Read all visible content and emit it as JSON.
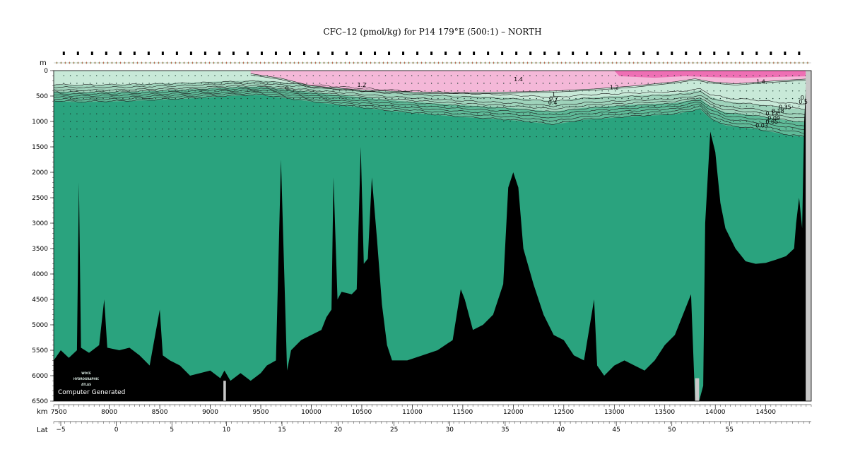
{
  "chart_data": {
    "type": "heatmap",
    "title": "CFC–12 (pmol/kg) for P14 179°E (500:1) – NORTH",
    "ylabel": "m",
    "xlabel": "km",
    "lat_label": "Lat",
    "xlim": [
      7450,
      14950
    ],
    "ylim": [
      0,
      6500
    ],
    "y_ticks": [
      0,
      500,
      1000,
      1500,
      2000,
      2500,
      3000,
      3500,
      4000,
      4500,
      5000,
      5500,
      6000,
      6500
    ],
    "x_ticks": [
      7500,
      8000,
      8500,
      9000,
      9500,
      10000,
      10500,
      11000,
      11500,
      12000,
      12500,
      13000,
      13500,
      14000,
      14500
    ],
    "lat_ticks": [
      {
        "km": 7520,
        "label": "−5"
      },
      {
        "km": 8070,
        "label": "0"
      },
      {
        "km": 8620,
        "label": "5"
      },
      {
        "km": 9160,
        "label": "10"
      },
      {
        "km": 9710,
        "label": "15"
      },
      {
        "km": 10265,
        "label": "20"
      },
      {
        "km": 10820,
        "label": "25"
      },
      {
        "km": 11370,
        "label": "30"
      },
      {
        "km": 11920,
        "label": "35"
      },
      {
        "km": 12470,
        "label": "40"
      },
      {
        "km": 13020,
        "label": "45"
      },
      {
        "km": 13570,
        "label": "50"
      },
      {
        "km": 14140,
        "label": "55"
      }
    ],
    "colors": {
      "deep": "#2aa37e",
      "band_low": "#5fba98",
      "band_mid": "#9fd3bb",
      "band_high": "#c8e9d8",
      "pink": "#f4b8d8",
      "magenta": "#ee6fb4",
      "bottom": "#000000",
      "gap": "#c8c8c8"
    },
    "contour_labels": [
      {
        "km": 12050,
        "depth": 210,
        "text": "1.4"
      },
      {
        "km": 10500,
        "depth": 320,
        "text": "1.2"
      },
      {
        "km": 13000,
        "depth": 370,
        "text": "1.2"
      },
      {
        "km": 14450,
        "depth": 260,
        "text": "1.4"
      },
      {
        "km": 12400,
        "depth": 510,
        "text": "1"
      },
      {
        "km": 12400,
        "depth": 590,
        "text": "0.7"
      },
      {
        "km": 12390,
        "depth": 670,
        "text": "0.4"
      },
      {
        "km": 14870,
        "depth": 570,
        "text": "0."
      },
      {
        "km": 14870,
        "depth": 650,
        "text": "0.5"
      },
      {
        "km": 14690,
        "depth": 760,
        "text": "0.35"
      },
      {
        "km": 14620,
        "depth": 830,
        "text": "0.18"
      },
      {
        "km": 14560,
        "depth": 880,
        "text": "0.13"
      },
      {
        "km": 14580,
        "depth": 970,
        "text": "0.09"
      },
      {
        "km": 14560,
        "depth": 1040,
        "text": "0.05"
      },
      {
        "km": 14460,
        "depth": 1120,
        "text": "0.03"
      },
      {
        "km": 9760,
        "depth": 380,
        "text": "0"
      }
    ],
    "logo": [
      "WOCE",
      "HYDROGRAPHIC",
      "ATLAS"
    ],
    "credit": "Computer Generated"
  }
}
